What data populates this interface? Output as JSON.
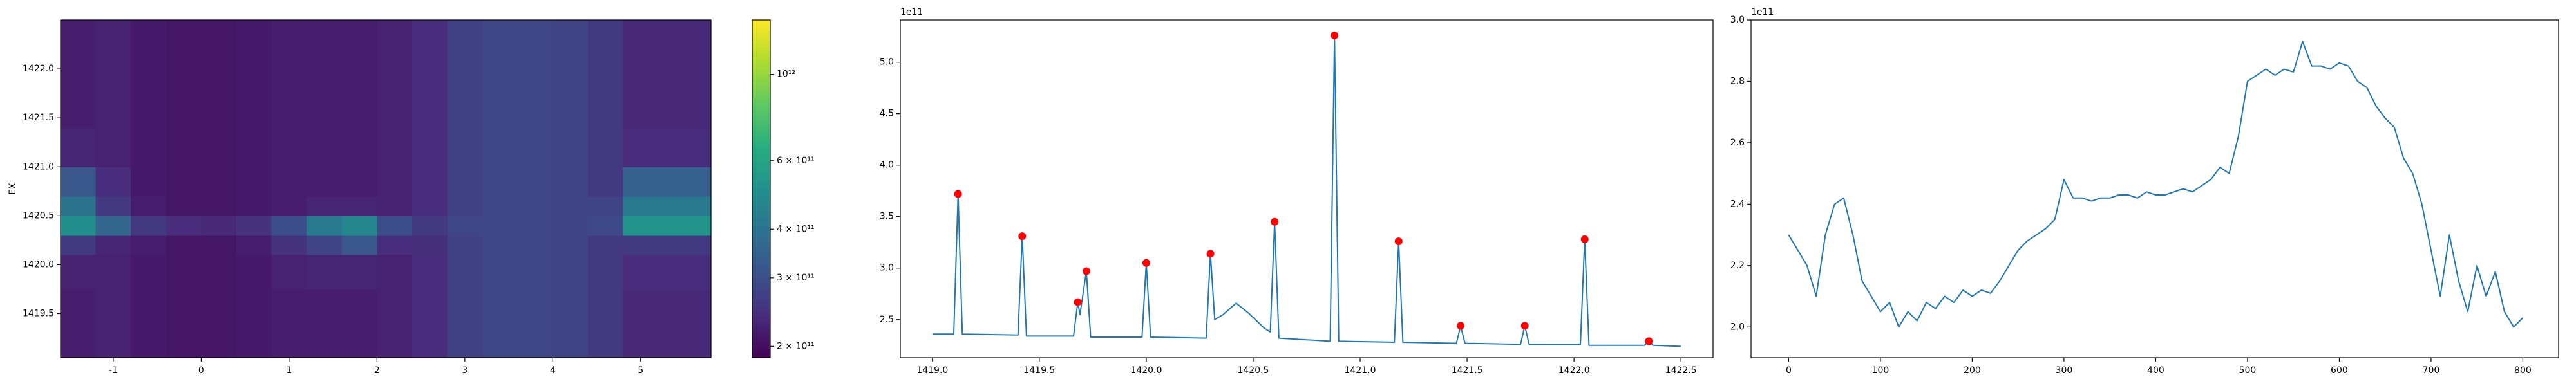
{
  "chart_data": [
    {
      "type": "heatmap",
      "cmap": "viridis",
      "ylabel": "EX",
      "x_edges": [
        -1.6,
        -1.2,
        -0.8,
        -0.4,
        0,
        0.4,
        0.8,
        1.2,
        1.6,
        2.0,
        2.4,
        2.8,
        3.2,
        3.6,
        4.0,
        4.4,
        4.8,
        5.8
      ],
      "y_edges": [
        1419.05,
        1419.4,
        1419.75,
        1420.1,
        1420.3,
        1420.5,
        1420.7,
        1421.0,
        1421.4,
        1421.8,
        1422.15,
        1422.5
      ],
      "values": [
        [
          220000000000.0,
          225000000000.0,
          215000000000.0,
          210000000000.0,
          210000000000.0,
          215000000000.0,
          220000000000.0,
          220000000000.0,
          220000000000.0,
          225000000000.0,
          240000000000.0,
          275000000000.0,
          285000000000.0,
          285000000000.0,
          280000000000.0,
          260000000000.0,
          235000000000.0
        ],
        [
          220000000000.0,
          225000000000.0,
          215000000000.0,
          210000000000.0,
          210000000000.0,
          215000000000.0,
          220000000000.0,
          220000000000.0,
          220000000000.0,
          225000000000.0,
          240000000000.0,
          275000000000.0,
          285000000000.0,
          285000000000.0,
          280000000000.0,
          260000000000.0,
          235000000000.0
        ],
        [
          225000000000.0,
          225000000000.0,
          215000000000.0,
          210000000000.0,
          210000000000.0,
          215000000000.0,
          225000000000.0,
          230000000000.0,
          230000000000.0,
          225000000000.0,
          240000000000.0,
          275000000000.0,
          285000000000.0,
          285000000000.0,
          280000000000.0,
          260000000000.0,
          240000000000.0
        ],
        [
          260000000000.0,
          230000000000.0,
          220000000000.0,
          210000000000.0,
          210000000000.0,
          220000000000.0,
          250000000000.0,
          280000000000.0,
          320000000000.0,
          240000000000.0,
          245000000000.0,
          275000000000.0,
          285000000000.0,
          285000000000.0,
          280000000000.0,
          260000000000.0,
          260000000000.0
        ],
        [
          500000000000.0,
          360000000000.0,
          260000000000.0,
          240000000000.0,
          235000000000.0,
          250000000000.0,
          300000000000.0,
          420000000000.0,
          460000000000.0,
          300000000000.0,
          260000000000.0,
          285000000000.0,
          285000000000.0,
          285000000000.0,
          280000000000.0,
          290000000000.0,
          520000000000.0
        ],
        [
          400000000000.0,
          260000000000.0,
          220000000000.0,
          210000000000.0,
          210000000000.0,
          215000000000.0,
          220000000000.0,
          230000000000.0,
          230000000000.0,
          225000000000.0,
          240000000000.0,
          275000000000.0,
          285000000000.0,
          285000000000.0,
          280000000000.0,
          280000000000.0,
          420000000000.0
        ],
        [
          320000000000.0,
          240000000000.0,
          215000000000.0,
          210000000000.0,
          210000000000.0,
          215000000000.0,
          220000000000.0,
          220000000000.0,
          220000000000.0,
          225000000000.0,
          240000000000.0,
          275000000000.0,
          285000000000.0,
          285000000000.0,
          280000000000.0,
          260000000000.0,
          340000000000.0
        ],
        [
          230000000000.0,
          225000000000.0,
          215000000000.0,
          210000000000.0,
          210000000000.0,
          215000000000.0,
          220000000000.0,
          220000000000.0,
          220000000000.0,
          225000000000.0,
          240000000000.0,
          275000000000.0,
          285000000000.0,
          285000000000.0,
          280000000000.0,
          260000000000.0,
          240000000000.0
        ],
        [
          220000000000.0,
          225000000000.0,
          215000000000.0,
          210000000000.0,
          210000000000.0,
          215000000000.0,
          220000000000.0,
          220000000000.0,
          220000000000.0,
          225000000000.0,
          240000000000.0,
          275000000000.0,
          285000000000.0,
          285000000000.0,
          280000000000.0,
          260000000000.0,
          235000000000.0
        ],
        [
          220000000000.0,
          225000000000.0,
          215000000000.0,
          210000000000.0,
          210000000000.0,
          215000000000.0,
          220000000000.0,
          220000000000.0,
          220000000000.0,
          225000000000.0,
          240000000000.0,
          275000000000.0,
          285000000000.0,
          285000000000.0,
          280000000000.0,
          260000000000.0,
          235000000000.0
        ],
        [
          220000000000.0,
          225000000000.0,
          215000000000.0,
          210000000000.0,
          210000000000.0,
          215000000000.0,
          220000000000.0,
          220000000000.0,
          220000000000.0,
          225000000000.0,
          240000000000.0,
          275000000000.0,
          285000000000.0,
          285000000000.0,
          280000000000.0,
          260000000000.0,
          235000000000.0
        ]
      ],
      "xlim": [
        -1.6,
        5.8
      ],
      "xticks": [
        -1,
        0,
        1,
        2,
        3,
        4,
        5
      ],
      "ylim": [
        1419.05,
        1422.5
      ],
      "yticks": [
        1419.5,
        {
          "value": 1420,
          "label": "1420.0"
        },
        1420.5,
        {
          "value": 1421,
          "label": "1421.0"
        },
        1421.5,
        {
          "value": 1422,
          "label": "1422.0"
        }
      ],
      "colorbar": {
        "scale": "log",
        "lim": [
          187000000000.0,
          1380000000000.0
        ],
        "ticks": [
          {
            "value": 200000000000.0,
            "label": "2 × 10¹¹"
          },
          {
            "value": 300000000000.0,
            "label": "3 × 10¹¹"
          },
          {
            "value": 400000000000.0,
            "label": "4 × 10¹¹"
          },
          {
            "value": 600000000000.0,
            "label": "6 × 10¹¹"
          },
          {
            "value": 1000000000000.0,
            "label": "10¹²"
          }
        ]
      }
    },
    {
      "type": "line",
      "offset_text": "1e11",
      "x": [
        1419.0,
        1419.1,
        1419.12,
        1419.14,
        1419.4,
        1419.42,
        1419.44,
        1419.66,
        1419.68,
        1419.69,
        1419.72,
        1419.74,
        1419.98,
        1420.0,
        1420.02,
        1420.28,
        1420.3,
        1420.32,
        1420.36,
        1420.42,
        1420.48,
        1420.55,
        1420.58,
        1420.6,
        1420.62,
        1420.86,
        1420.88,
        1420.9,
        1421.16,
        1421.18,
        1421.2,
        1421.45,
        1421.47,
        1421.49,
        1421.75,
        1421.77,
        1421.79,
        1422.03,
        1422.05,
        1422.07,
        1422.33,
        1422.35,
        1422.37,
        1422.5
      ],
      "series": [
        {
          "color": "#1f77b4",
          "values": [
            2.36,
            2.36,
            3.72,
            2.36,
            2.35,
            3.31,
            2.34,
            2.34,
            2.67,
            2.55,
            2.97,
            2.33,
            2.33,
            3.05,
            2.33,
            2.32,
            3.14,
            2.5,
            2.55,
            2.66,
            2.56,
            2.42,
            2.38,
            3.45,
            2.32,
            2.29,
            5.26,
            2.29,
            2.28,
            3.26,
            2.28,
            2.27,
            2.44,
            2.27,
            2.26,
            2.44,
            2.26,
            2.26,
            3.28,
            2.25,
            2.25,
            2.29,
            2.25,
            2.24
          ]
        }
      ],
      "markers": {
        "color": "red",
        "x": [
          1419.12,
          1419.42,
          1419.68,
          1419.72,
          1420.0,
          1420.3,
          1420.6,
          1420.88,
          1421.18,
          1421.47,
          1421.77,
          1422.05,
          1422.35
        ],
        "values": [
          3.72,
          3.31,
          2.67,
          2.97,
          3.05,
          3.14,
          3.45,
          5.26,
          3.26,
          2.44,
          2.44,
          3.28,
          2.29
        ]
      },
      "xlim": [
        1418.85,
        1422.65
      ],
      "xticks": [
        {
          "value": 1419,
          "label": "1419.0"
        },
        1419.5,
        {
          "value": 1420,
          "label": "1420.0"
        },
        1420.5,
        {
          "value": 1421,
          "label": "1421.0"
        },
        1421.5,
        {
          "value": 1422,
          "label": "1422.0"
        },
        1422.5
      ],
      "ylim": [
        2.13,
        5.41
      ],
      "yticks": [
        2.5,
        {
          "value": 3,
          "label": "3.0"
        },
        3.5,
        {
          "value": 4,
          "label": "4.0"
        },
        4.5,
        {
          "value": 5,
          "label": "5.0"
        }
      ]
    },
    {
      "type": "line",
      "offset_text": "1e11",
      "x": [
        0,
        10,
        20,
        30,
        40,
        50,
        60,
        70,
        80,
        90,
        100,
        110,
        120,
        130,
        140,
        150,
        160,
        170,
        180,
        190,
        200,
        210,
        220,
        230,
        240,
        250,
        260,
        270,
        280,
        290,
        300,
        310,
        320,
        330,
        340,
        350,
        360,
        370,
        380,
        390,
        400,
        410,
        420,
        430,
        440,
        450,
        460,
        470,
        480,
        490,
        500,
        510,
        520,
        530,
        540,
        550,
        560,
        570,
        580,
        590,
        600,
        610,
        620,
        630,
        640,
        650,
        660,
        670,
        680,
        690,
        700,
        710,
        720,
        730,
        740,
        750,
        760,
        770,
        780,
        790,
        800
      ],
      "series": [
        {
          "color": "#1f77b4",
          "values": [
            2.3,
            2.25,
            2.2,
            2.1,
            2.3,
            2.4,
            2.42,
            2.3,
            2.15,
            2.1,
            2.05,
            2.08,
            2.0,
            2.05,
            2.02,
            2.08,
            2.06,
            2.1,
            2.08,
            2.12,
            2.1,
            2.12,
            2.11,
            2.15,
            2.2,
            2.25,
            2.28,
            2.3,
            2.32,
            2.35,
            2.48,
            2.42,
            2.42,
            2.41,
            2.42,
            2.42,
            2.43,
            2.43,
            2.42,
            2.44,
            2.43,
            2.43,
            2.44,
            2.45,
            2.44,
            2.46,
            2.48,
            2.52,
            2.5,
            2.62,
            2.8,
            2.82,
            2.84,
            2.82,
            2.84,
            2.83,
            2.93,
            2.85,
            2.85,
            2.84,
            2.86,
            2.85,
            2.8,
            2.78,
            2.72,
            2.68,
            2.65,
            2.55,
            2.5,
            2.4,
            2.25,
            2.1,
            2.3,
            2.15,
            2.05,
            2.2,
            2.1,
            2.18,
            2.05,
            2.0,
            2.03
          ]
        }
      ],
      "xlim": [
        -41,
        839
      ],
      "xticks": [
        0,
        100,
        200,
        300,
        400,
        500,
        600,
        700,
        800
      ],
      "ylim": [
        1.9,
        3.0
      ],
      "yticks": [
        {
          "value": 2,
          "label": "2.0"
        },
        2.2,
        2.4,
        2.6,
        2.8,
        {
          "value": 3,
          "label": "3.0"
        }
      ]
    }
  ]
}
